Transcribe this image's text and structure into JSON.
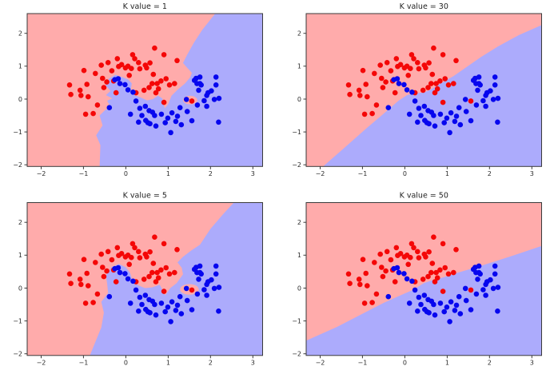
{
  "page": {
    "background": "#ffffff",
    "description": "2x2 grid of KNN decision boundary plots on the two-moons dataset"
  },
  "colors": {
    "region_red": "#ffabab",
    "region_blue": "#acabfc",
    "point_red": "#f40707",
    "point_blue": "#0707ee",
    "frame": "#3a3a3a",
    "tick_text": "#2b2b2b",
    "title_text": "#1f1f1f"
  },
  "chart_data": {
    "type": "scatter",
    "title": "",
    "grid": false,
    "legend": "none",
    "shared": {
      "xlim": [
        -2.33,
        3.23
      ],
      "ylim": [
        -2.05,
        2.6
      ],
      "x_ticks": [
        -2,
        -1,
        0,
        1,
        2,
        3
      ],
      "y_ticks": [
        -2,
        -1,
        0,
        1,
        2
      ],
      "series": [
        {
          "name": "class-red",
          "color_key": "point_red",
          "points": [
            [
              -1.33,
              0.43
            ],
            [
              -1.3,
              0.14
            ],
            [
              -1.08,
              0.27
            ],
            [
              -1.06,
              0.11
            ],
            [
              -0.99,
              0.87
            ],
            [
              -0.92,
              0.45
            ],
            [
              -0.89,
              0.07
            ],
            [
              -0.95,
              -0.46
            ],
            [
              -0.77,
              -0.44
            ],
            [
              -0.67,
              -0.18
            ],
            [
              -0.58,
              1.03
            ],
            [
              -0.72,
              0.78
            ],
            [
              -0.55,
              0.63
            ],
            [
              -0.52,
              0.35
            ],
            [
              -0.45,
              0.52
            ],
            [
              -0.42,
              1.11
            ],
            [
              -0.33,
              0.86
            ],
            [
              -0.29,
              0.55
            ],
            [
              -0.23,
              0.19
            ],
            [
              -0.2,
              1.23
            ],
            [
              -0.17,
              0.99
            ],
            [
              -0.1,
              1.05
            ],
            [
              -0.01,
              0.95
            ],
            [
              0.05,
              1.0
            ],
            [
              0.08,
              0.72
            ],
            [
              0.13,
              0.93
            ],
            [
              0.16,
              1.35
            ],
            [
              0.21,
              1.23
            ],
            [
              0.24,
              0.19
            ],
            [
              0.3,
              1.11
            ],
            [
              0.33,
              0.92
            ],
            [
              0.43,
              0.27
            ],
            [
              0.46,
              1.03
            ],
            [
              0.49,
              0.95
            ],
            [
              0.55,
              0.35
            ],
            [
              0.57,
              1.1
            ],
            [
              0.62,
              0.47
            ],
            [
              0.65,
              0.75
            ],
            [
              0.68,
              1.55
            ],
            [
              0.74,
              0.47
            ],
            [
              0.77,
              0.31
            ],
            [
              0.71,
              0.19
            ],
            [
              0.83,
              0.55
            ],
            [
              0.9,
              1.35
            ],
            [
              0.9,
              -0.1
            ],
            [
              0.95,
              0.62
            ],
            [
              1.03,
              0.43
            ],
            [
              1.15,
              0.47
            ],
            [
              1.21,
              1.17
            ],
            [
              1.56,
              -0.06
            ]
          ]
        },
        {
          "name": "class-blue",
          "color_key": "point_blue",
          "points": [
            [
              -0.39,
              -0.26
            ],
            [
              -0.26,
              0.59
            ],
            [
              -0.18,
              0.62
            ],
            [
              -0.14,
              0.47
            ],
            [
              -0.02,
              0.44
            ],
            [
              0.05,
              0.28
            ],
            [
              0.17,
              0.21
            ],
            [
              0.24,
              -0.06
            ],
            [
              0.11,
              -0.46
            ],
            [
              0.3,
              -0.7
            ],
            [
              0.33,
              -0.28
            ],
            [
              0.38,
              -0.5
            ],
            [
              0.46,
              -0.22
            ],
            [
              0.52,
              -0.72
            ],
            [
              0.57,
              -0.75
            ],
            [
              0.55,
              -0.35
            ],
            [
              0.63,
              -0.4
            ],
            [
              0.68,
              -0.5
            ],
            [
              0.71,
              -0.82
            ],
            [
              0.84,
              -0.46
            ],
            [
              0.93,
              -0.72
            ],
            [
              0.99,
              -0.58
            ],
            [
              1.06,
              -1.02
            ],
            [
              1.09,
              -0.42
            ],
            [
              1.18,
              -0.68
            ],
            [
              1.28,
              -0.26
            ],
            [
              1.31,
              -0.78
            ],
            [
              1.43,
              -0.01
            ],
            [
              1.45,
              -0.38
            ],
            [
              1.56,
              -0.66
            ],
            [
              1.62,
              0.57
            ],
            [
              1.66,
              0.63
            ],
            [
              1.69,
              -0.18
            ],
            [
              1.72,
              0.27
            ],
            [
              1.75,
              0.67
            ],
            [
              1.75,
              0.47
            ],
            [
              1.78,
              0.43
            ],
            [
              1.85,
              -0.05
            ],
            [
              1.91,
              0.11
            ],
            [
              1.91,
              -0.22
            ],
            [
              1.94,
              0.19
            ],
            [
              2.02,
              0.25
            ],
            [
              2.09,
              -0.01
            ],
            [
              2.13,
              0.67
            ],
            [
              2.13,
              0.43
            ],
            [
              2.19,
              -0.7
            ],
            [
              2.2,
              0.02
            ],
            [
              1.68,
              0.47
            ],
            [
              0.47,
              -0.65
            ],
            [
              1.22,
              -0.52
            ]
          ]
        }
      ]
    },
    "subplots": [
      {
        "title": "K value = 1",
        "k": 1,
        "grid_pos": "top-left",
        "blue_region": [
          [
            -0.62,
            -2.05
          ],
          [
            -0.6,
            -1.4
          ],
          [
            -0.7,
            -1.1
          ],
          [
            -0.55,
            -0.8
          ],
          [
            -0.62,
            -0.5
          ],
          [
            -0.48,
            -0.32
          ],
          [
            -0.35,
            -0.28
          ],
          [
            -0.44,
            -0.05
          ],
          [
            -0.32,
            0.02
          ],
          [
            -0.47,
            0.12
          ],
          [
            -0.36,
            0.25
          ],
          [
            -0.48,
            0.42
          ],
          [
            -0.4,
            0.62
          ],
          [
            -0.25,
            0.74
          ],
          [
            -0.08,
            0.66
          ],
          [
            0.05,
            0.6
          ],
          [
            0.14,
            0.48
          ],
          [
            0.12,
            0.3
          ],
          [
            0.24,
            0.1
          ],
          [
            0.36,
            0.04
          ],
          [
            0.5,
            -0.04
          ],
          [
            0.64,
            0.0
          ],
          [
            0.76,
            0.1
          ],
          [
            0.86,
            0.02
          ],
          [
            0.92,
            -0.28
          ],
          [
            1.0,
            -0.15
          ],
          [
            1.08,
            0.1
          ],
          [
            1.22,
            0.28
          ],
          [
            1.4,
            0.48
          ],
          [
            1.52,
            0.66
          ],
          [
            1.56,
            0.8
          ],
          [
            1.45,
            0.95
          ],
          [
            1.35,
            1.1
          ],
          [
            1.45,
            1.35
          ],
          [
            1.6,
            1.7
          ],
          [
            1.8,
            2.1
          ],
          [
            2.11,
            2.6
          ],
          [
            3.23,
            2.6
          ],
          [
            3.23,
            -2.05
          ]
        ],
        "red_pockets": [
          {
            "cx": 1.52,
            "cy": -0.03,
            "rx": 0.17,
            "ry": 0.13
          }
        ]
      },
      {
        "title": "K value = 30",
        "k": 30,
        "grid_pos": "top-right",
        "blue_region": [
          [
            -1.93,
            -2.05
          ],
          [
            -1.4,
            -1.45
          ],
          [
            -0.9,
            -0.88
          ],
          [
            -0.55,
            -0.5
          ],
          [
            -0.15,
            -0.05
          ],
          [
            0.05,
            0.12
          ],
          [
            0.25,
            0.18
          ],
          [
            0.45,
            0.2
          ],
          [
            0.6,
            0.28
          ],
          [
            0.75,
            0.4
          ],
          [
            0.95,
            0.55
          ],
          [
            1.15,
            0.7
          ],
          [
            1.43,
            0.95
          ],
          [
            1.8,
            1.28
          ],
          [
            2.2,
            1.6
          ],
          [
            2.7,
            1.95
          ],
          [
            3.23,
            2.25
          ],
          [
            3.23,
            -2.05
          ]
        ],
        "red_pockets": []
      },
      {
        "title": "K value = 5",
        "k": 5,
        "grid_pos": "bottom-left",
        "blue_region": [
          [
            -0.85,
            -2.05
          ],
          [
            -0.58,
            -1.2
          ],
          [
            -0.52,
            -0.75
          ],
          [
            -0.58,
            -0.42
          ],
          [
            -0.42,
            -0.15
          ],
          [
            -0.44,
            0.12
          ],
          [
            -0.47,
            0.38
          ],
          [
            -0.34,
            0.64
          ],
          [
            -0.16,
            0.73
          ],
          [
            0.0,
            0.63
          ],
          [
            0.1,
            0.46
          ],
          [
            0.15,
            0.26
          ],
          [
            0.28,
            0.09
          ],
          [
            0.45,
            0.0
          ],
          [
            0.62,
            0.02
          ],
          [
            0.8,
            0.1
          ],
          [
            0.93,
            -0.22
          ],
          [
            1.05,
            0.0
          ],
          [
            1.2,
            0.15
          ],
          [
            1.35,
            0.42
          ],
          [
            1.32,
            0.62
          ],
          [
            1.22,
            0.78
          ],
          [
            1.35,
            0.95
          ],
          [
            1.55,
            1.15
          ],
          [
            1.75,
            1.32
          ],
          [
            2.0,
            1.8
          ],
          [
            2.3,
            2.25
          ],
          [
            2.55,
            2.6
          ],
          [
            3.23,
            2.6
          ],
          [
            3.23,
            -2.05
          ]
        ],
        "red_pockets": [
          {
            "cx": 1.5,
            "cy": -0.04,
            "rx": 0.22,
            "ry": 0.16
          }
        ]
      },
      {
        "title": "K value = 50",
        "k": 50,
        "grid_pos": "bottom-right",
        "blue_region": [
          [
            -2.33,
            -1.6
          ],
          [
            -1.6,
            -1.18
          ],
          [
            -1.0,
            -0.78
          ],
          [
            -0.5,
            -0.45
          ],
          [
            -0.1,
            -0.22
          ],
          [
            0.2,
            -0.05
          ],
          [
            0.45,
            0.15
          ],
          [
            0.65,
            0.24
          ],
          [
            0.9,
            0.32
          ],
          [
            1.2,
            0.45
          ],
          [
            1.6,
            0.6
          ],
          [
            2.1,
            0.8
          ],
          [
            2.7,
            1.05
          ],
          [
            3.23,
            1.28
          ],
          [
            3.23,
            -2.05
          ],
          [
            -2.33,
            -2.05
          ]
        ],
        "red_pockets": []
      }
    ]
  }
}
